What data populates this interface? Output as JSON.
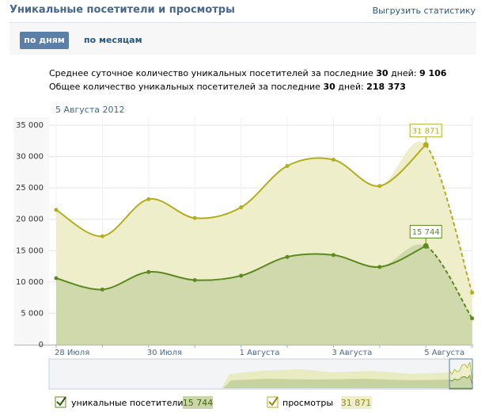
{
  "header": {
    "title": "Уникальные посетители и просмотры",
    "export": "Выгрузить статистику"
  },
  "tabs": [
    "по дням",
    "по месяцам"
  ],
  "stats": [
    {
      "label": "Среднее суточное количество уникальных посетителей за последние",
      "days": "30",
      "unit": "дней:",
      "value": "9 106"
    },
    {
      "label": "Общее количество уникальных посетителей за последние",
      "days": "30",
      "unit": "дней:",
      "value": "218 373"
    }
  ],
  "chart_data": {
    "type": "area",
    "subtitle": "5 Августа 2012",
    "categories": [
      "28 Июля",
      null,
      "30 Июля",
      null,
      "1 Августа",
      null,
      "3 Августа",
      null,
      "5 Августа",
      null
    ],
    "series": [
      {
        "name": "просмотры",
        "color": "#b3ae1c",
        "fill": "#eeeecb",
        "values": [
          21500,
          17300,
          23200,
          20200,
          21900,
          28500,
          29500,
          25300,
          31871,
          8300
        ],
        "value_labels": [
          null,
          null,
          null,
          null,
          null,
          null,
          null,
          null,
          "31 871",
          null
        ]
      },
      {
        "name": "уникальные посетители",
        "color": "#5c8a1e",
        "fill": "#cbd6a8",
        "values": [
          10600,
          8800,
          11600,
          10300,
          11000,
          14000,
          14300,
          12400,
          15744,
          4200
        ],
        "value_labels": [
          null,
          null,
          null,
          null,
          null,
          null,
          null,
          null,
          "15 744",
          null
        ]
      }
    ],
    "ylim": [
      0,
      35000
    ],
    "yticks": [
      0,
      {
        "value": 5000,
        "label": "5 000"
      },
      {
        "value": 10000,
        "label": "10 000"
      },
      {
        "value": 15000,
        "label": "15 000"
      },
      {
        "value": 20000,
        "label": "20 000"
      },
      {
        "value": 25000,
        "label": "25 000"
      },
      {
        "value": 30000,
        "label": "30 000"
      },
      {
        "value": 35000,
        "label": "35 000"
      }
    ],
    "grid": true
  }
}
